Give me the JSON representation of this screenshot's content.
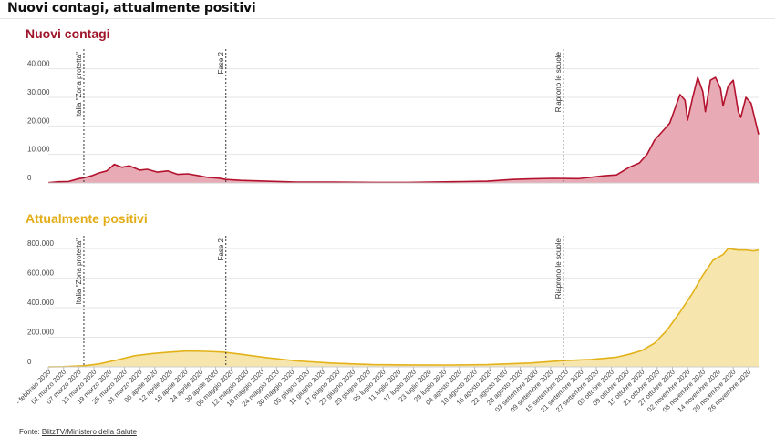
{
  "page": {
    "title": "Nuovi contagi, attualmente positivi",
    "source_prefix": "Fonte: ",
    "source_name": "BlitzTV/Ministero della Salute"
  },
  "colors": {
    "contagi_line": "#b3122d",
    "contagi_fill": "#e8aab5",
    "positivi_line": "#e3b21b",
    "positivi_fill": "#f6e6ad",
    "grid": "#e6e6e6",
    "annotation": "#333333"
  },
  "chart_data": [
    {
      "type": "area",
      "title": "Nuovi contagi",
      "ylim": [
        0,
        45000
      ],
      "yticks": [
        0,
        10000,
        20000,
        30000,
        40000
      ],
      "ytick_labels": [
        "0",
        "10.000",
        "20.000",
        "30.000",
        "40.000"
      ],
      "grid": true,
      "x": [
        "2020-02-24",
        "2020-02-28",
        "2020-03-03",
        "2020-03-07",
        "2020-03-09",
        "2020-03-12",
        "2020-03-15",
        "2020-03-18",
        "2020-03-21",
        "2020-03-24",
        "2020-03-27",
        "2020-03-31",
        "2020-04-03",
        "2020-04-07",
        "2020-04-11",
        "2020-04-15",
        "2020-04-19",
        "2020-04-23",
        "2020-04-27",
        "2020-05-01",
        "2020-05-04",
        "2020-05-10",
        "2020-05-20",
        "2020-06-01",
        "2020-06-15",
        "2020-07-01",
        "2020-07-15",
        "2020-08-01",
        "2020-08-15",
        "2020-08-25",
        "2020-09-01",
        "2020-09-10",
        "2020-09-20",
        "2020-09-30",
        "2020-10-05",
        "2020-10-10",
        "2020-10-14",
        "2020-10-17",
        "2020-10-20",
        "2020-10-24",
        "2020-10-26",
        "2020-10-28",
        "2020-10-30",
        "2020-11-01",
        "2020-11-02",
        "2020-11-04",
        "2020-11-06",
        "2020-11-08",
        "2020-11-09",
        "2020-11-11",
        "2020-11-13",
        "2020-11-15",
        "2020-11-16",
        "2020-11-18",
        "2020-11-20",
        "2020-11-22",
        "2020-11-23",
        "2020-11-25",
        "2020-11-27",
        "2020-11-30"
      ],
      "series": [
        {
          "values": [
            100,
            400,
            500,
            1500,
            1800,
            2500,
            3500,
            4200,
            6500,
            5500,
            6000,
            4500,
            4800,
            3800,
            4200,
            3000,
            3200,
            2600,
            1900,
            1700,
            1200,
            900,
            600,
            300,
            300,
            200,
            200,
            400,
            600,
            1200,
            1400,
            1600,
            1500,
            2500,
            2800,
            5500,
            7000,
            10000,
            15000,
            19000,
            21000,
            26000,
            31000,
            29000,
            22000,
            30000,
            37000,
            32000,
            25000,
            36000,
            37000,
            33000,
            27000,
            34000,
            36000,
            25000,
            23000,
            30000,
            28000,
            17000
          ]
        }
      ],
      "annotations": [
        {
          "date": "2020-03-09",
          "label": "Italia \"Zona protetta\""
        },
        {
          "date": "2020-05-04",
          "label": "Fase 2"
        },
        {
          "date": "2020-09-14",
          "label": "Riaprono le scuole"
        }
      ]
    },
    {
      "type": "area",
      "title": "Attualmente positivi",
      "ylim": [
        0,
        850000
      ],
      "yticks": [
        0,
        200000,
        400000,
        600000,
        800000
      ],
      "ytick_labels": [
        "0",
        "200.000",
        "400.000",
        "600.000",
        "800.000"
      ],
      "grid": true,
      "x": [
        "2020-02-24",
        "2020-03-01",
        "2020-03-09",
        "2020-03-15",
        "2020-03-22",
        "2020-03-29",
        "2020-04-05",
        "2020-04-12",
        "2020-04-19",
        "2020-04-26",
        "2020-05-03",
        "2020-05-10",
        "2020-05-20",
        "2020-06-01",
        "2020-06-15",
        "2020-07-01",
        "2020-07-15",
        "2020-08-01",
        "2020-08-15",
        "2020-09-01",
        "2020-09-14",
        "2020-09-25",
        "2020-10-05",
        "2020-10-10",
        "2020-10-15",
        "2020-10-20",
        "2020-10-25",
        "2020-10-30",
        "2020-11-04",
        "2020-11-08",
        "2020-11-12",
        "2020-11-16",
        "2020-11-18",
        "2020-11-22",
        "2020-11-25",
        "2020-11-28",
        "2020-11-30"
      ],
      "series": [
        {
          "values": [
            200,
            1500,
            7500,
            20000,
            46000,
            75000,
            90000,
            100000,
            107000,
            105000,
            100000,
            85000,
            62000,
            40000,
            25000,
            15000,
            13000,
            12500,
            15000,
            26000,
            42000,
            50000,
            65000,
            85000,
            110000,
            160000,
            250000,
            370000,
            500000,
            620000,
            720000,
            760000,
            800000,
            790000,
            790000,
            785000,
            790000
          ]
        }
      ],
      "annotations": [
        {
          "date": "2020-03-09",
          "label": "Italia \"Zona protetta\""
        },
        {
          "date": "2020-05-04",
          "label": "Fase 2"
        },
        {
          "date": "2020-09-14",
          "label": "Riaprono le scuole"
        }
      ]
    }
  ],
  "x_axis": {
    "range": [
      "2020-02-24",
      "2020-11-30"
    ],
    "tick_dates": [
      "2020-02-24",
      "2020-03-01",
      "2020-03-07",
      "2020-03-13",
      "2020-03-19",
      "2020-03-25",
      "2020-03-31",
      "2020-04-06",
      "2020-04-12",
      "2020-04-18",
      "2020-04-24",
      "2020-04-30",
      "2020-05-06",
      "2020-05-12",
      "2020-05-18",
      "2020-05-24",
      "2020-05-30",
      "2020-06-05",
      "2020-06-11",
      "2020-06-17",
      "2020-06-23",
      "2020-06-29",
      "2020-07-05",
      "2020-07-11",
      "2020-07-17",
      "2020-07-23",
      "2020-07-29",
      "2020-08-04",
      "2020-08-10",
      "2020-08-16",
      "2020-08-22",
      "2020-08-28",
      "2020-09-03",
      "2020-09-09",
      "2020-09-15",
      "2020-09-21",
      "2020-09-27",
      "2020-10-03",
      "2020-10-09",
      "2020-10-15",
      "2020-10-21",
      "2020-10-27",
      "2020-11-02",
      "2020-11-08",
      "2020-11-14",
      "2020-11-20",
      "2020-11-26"
    ],
    "tick_labels": [
      "- febbraio 2020",
      "01 marzo 2020",
      "07 marzo 2020",
      "13 marzo 2020",
      "19 marzo 2020",
      "25 marzo 2020",
      "31 marzo 2020",
      "06 aprile 2020",
      "12 aprile 2020",
      "18 aprile 2020",
      "24 aprile 2020",
      "30 aprile 2020",
      "06 maggio 2020",
      "12 maggio 2020",
      "18 maggio 2020",
      "24 maggio 2020",
      "30 maggio 2020",
      "05 giugno 2020",
      "11 giugno 2020",
      "17 giugno 2020",
      "23 giugno 2020",
      "29 giugno 2020",
      "05 luglio 2020",
      "11 luglio 2020",
      "17 luglio 2020",
      "23 luglio 2020",
      "29 luglio 2020",
      "04 agosto 2020",
      "10 agosto 2020",
      "16 agosto 2020",
      "22 agosto 2020",
      "28 agosto 2020",
      "03 settembre 2020",
      "09 settembre 2020",
      "15 settembre 2020",
      "21 settembre 2020",
      "27 settembre 2020",
      "03 ottobre 2020",
      "09 ottobre 2020",
      "15 ottobre 2020",
      "21 ottobre 2020",
      "27 ottobre 2020",
      "02 novembre 2020",
      "08 novembre 2020",
      "14 novembre 2020",
      "20 novembre 2020",
      "26 novembre 2020"
    ]
  }
}
